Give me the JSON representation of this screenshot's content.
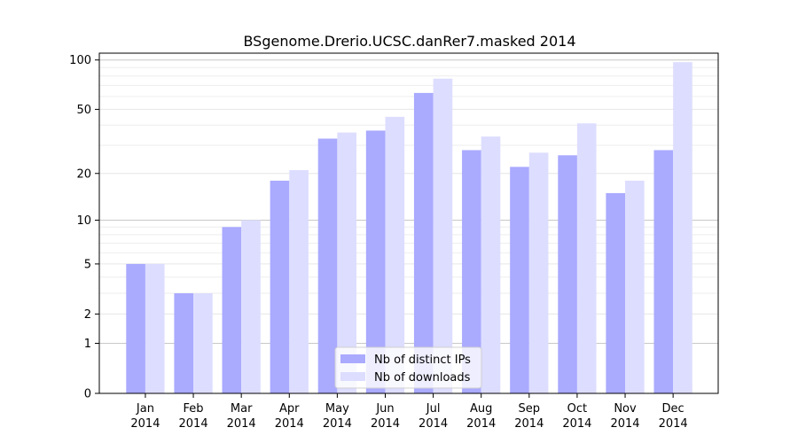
{
  "chart_data": {
    "type": "bar",
    "title": "BSgenome.Drerio.UCSC.danRer7.masked 2014",
    "xlabel": "",
    "ylabel": "",
    "categories": [
      [
        "Jan",
        "2014"
      ],
      [
        "Feb",
        "2014"
      ],
      [
        "Mar",
        "2014"
      ],
      [
        "Apr",
        "2014"
      ],
      [
        "May",
        "2014"
      ],
      [
        "Jun",
        "2014"
      ],
      [
        "Jul",
        "2014"
      ],
      [
        "Aug",
        "2014"
      ],
      [
        "Sep",
        "2014"
      ],
      [
        "Oct",
        "2014"
      ],
      [
        "Nov",
        "2014"
      ],
      [
        "Dec",
        "2014"
      ]
    ],
    "series": [
      {
        "name": "Nb of distinct IPs",
        "color": "#aaaaff",
        "values": [
          5,
          3,
          9,
          18,
          33,
          37,
          63,
          28,
          22,
          26,
          15,
          28
        ]
      },
      {
        "name": "Nb of downloads",
        "color": "#ddddff",
        "values": [
          5,
          3,
          10,
          21,
          36,
          45,
          77,
          34,
          27,
          41,
          18,
          97
        ]
      }
    ],
    "y_scale": "log(1+y)",
    "ylim": [
      0,
      110
    ],
    "y_ticks": [
      0,
      1,
      2,
      5,
      10,
      20,
      50,
      100
    ],
    "y_tick_labels": [
      "0",
      "1",
      "2",
      "5",
      "10",
      "20",
      "50",
      "100"
    ],
    "grid": true,
    "legend_position": "bottom-center"
  }
}
